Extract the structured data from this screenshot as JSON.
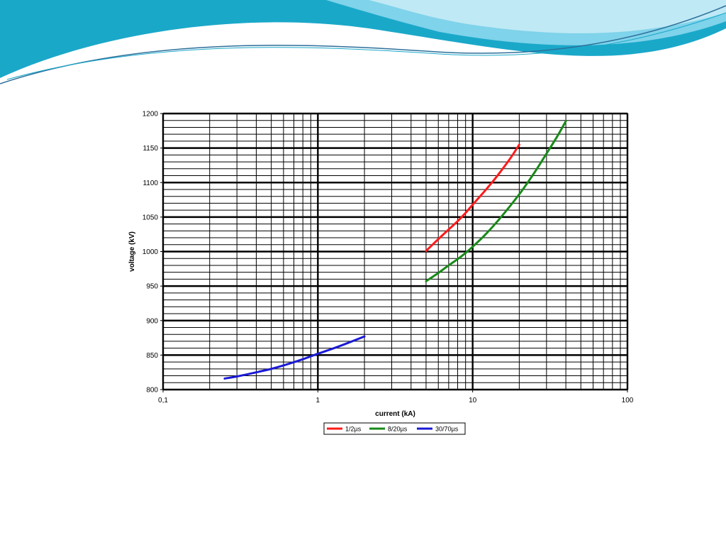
{
  "slide": {
    "decor_colors": [
      "#1aa8c9",
      "#7fd3ea",
      "#bfe9f5",
      "#2d6f9a"
    ]
  },
  "chart_data": {
    "type": "line",
    "title": "",
    "xlabel": "current (kA)",
    "ylabel": "voltage (kV)",
    "xscale": "log",
    "xlim": [
      0.1,
      100
    ],
    "ylim": [
      800,
      1200
    ],
    "x_ticks": [
      "0,1",
      "1",
      "10",
      "100"
    ],
    "x_tick_values": [
      0.1,
      1,
      10,
      100
    ],
    "y_ticks": [
      "800",
      "850",
      "900",
      "950",
      "1000",
      "1050",
      "1100",
      "1150",
      "1200"
    ],
    "y_tick_values": [
      800,
      850,
      900,
      950,
      1000,
      1050,
      1100,
      1150,
      1200
    ],
    "grid": true,
    "legend_position": "bottom-center",
    "series": [
      {
        "name": "1/2µs",
        "color": "#ff1a1a",
        "x": [
          5,
          6,
          7,
          8,
          9,
          10,
          12,
          14,
          16,
          18,
          20
        ],
        "y": [
          1001,
          1018,
          1032,
          1044,
          1056,
          1068,
          1088,
          1106,
          1123,
          1139,
          1155
        ]
      },
      {
        "name": "8/20µs",
        "color": "#188a18",
        "x": [
          5,
          6,
          7,
          8,
          9,
          10,
          12,
          15,
          20,
          25,
          30,
          35,
          40
        ],
        "y": [
          957,
          969,
          980,
          989,
          998,
          1007,
          1024,
          1048,
          1083,
          1114,
          1142,
          1166,
          1189
        ]
      },
      {
        "name": "30/70µs",
        "color": "#1a1ad6",
        "x": [
          0.25,
          0.3,
          0.4,
          0.5,
          0.6,
          0.8,
          1.0,
          1.2,
          1.5,
          2.0
        ],
        "y": [
          816,
          819,
          825,
          830,
          835,
          844,
          852,
          858,
          866,
          877
        ]
      }
    ]
  }
}
